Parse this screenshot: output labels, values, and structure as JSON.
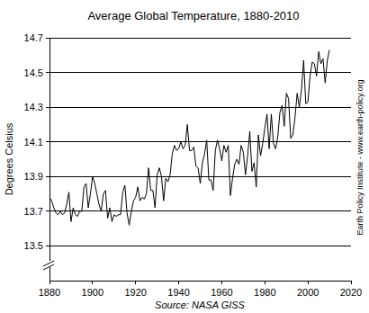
{
  "chart_data": {
    "type": "line",
    "title": "Average Global Temperature, 1880-2010",
    "ylabel": "Degrees Celsius",
    "source": "Source: NASA GISS",
    "credit": "Earth Policy Institute - www.earth-policy.org",
    "color": "#000000",
    "grid": true,
    "x": [
      1880,
      1881,
      1882,
      1883,
      1884,
      1885,
      1886,
      1887,
      1888,
      1889,
      1890,
      1891,
      1892,
      1893,
      1894,
      1895,
      1896,
      1897,
      1898,
      1899,
      1900,
      1901,
      1902,
      1903,
      1904,
      1905,
      1906,
      1907,
      1908,
      1909,
      1910,
      1911,
      1912,
      1913,
      1914,
      1915,
      1916,
      1917,
      1918,
      1919,
      1920,
      1921,
      1922,
      1923,
      1924,
      1925,
      1926,
      1927,
      1928,
      1929,
      1930,
      1931,
      1932,
      1933,
      1934,
      1935,
      1936,
      1937,
      1938,
      1939,
      1940,
      1941,
      1942,
      1943,
      1944,
      1945,
      1946,
      1947,
      1948,
      1949,
      1950,
      1951,
      1952,
      1953,
      1954,
      1955,
      1956,
      1957,
      1958,
      1959,
      1960,
      1961,
      1962,
      1963,
      1964,
      1965,
      1966,
      1967,
      1968,
      1969,
      1970,
      1971,
      1972,
      1973,
      1974,
      1975,
      1976,
      1977,
      1978,
      1979,
      1980,
      1981,
      1982,
      1983,
      1984,
      1985,
      1986,
      1987,
      1988,
      1989,
      1990,
      1991,
      1992,
      1993,
      1994,
      1995,
      1996,
      1997,
      1998,
      1999,
      2000,
      2001,
      2002,
      2003,
      2004,
      2005,
      2006,
      2007,
      2008,
      2009,
      2010
    ],
    "values": [
      13.78,
      13.76,
      13.72,
      13.69,
      13.68,
      13.7,
      13.68,
      13.69,
      13.74,
      13.81,
      13.64,
      13.72,
      13.68,
      13.67,
      13.7,
      13.7,
      13.84,
      13.86,
      13.72,
      13.8,
      13.9,
      13.86,
      13.8,
      13.74,
      13.7,
      13.8,
      13.82,
      13.66,
      13.72,
      13.64,
      13.68,
      13.67,
      13.68,
      13.68,
      13.81,
      13.85,
      13.69,
      13.62,
      13.7,
      13.76,
      13.78,
      13.84,
      13.76,
      13.78,
      13.77,
      13.8,
      13.95,
      13.82,
      13.82,
      13.72,
      13.91,
      13.95,
      13.9,
      13.76,
      13.89,
      13.87,
      13.91,
      14.03,
      14.08,
      14.05,
      14.06,
      14.1,
      14.06,
      14.08,
      14.2,
      14.05,
      14.05,
      14.07,
      13.96,
      13.95,
      13.86,
      13.98,
      14.03,
      14.11,
      13.88,
      13.88,
      13.82,
      14.05,
      14.11,
      14.06,
      13.99,
      14.08,
      14.04,
      14.08,
      13.79,
      13.89,
      13.97,
      14.0,
      13.97,
      14.08,
      14.04,
      13.91,
      14.02,
      14.16,
      13.93,
      13.98,
      13.84,
      14.14,
      14.02,
      14.09,
      14.18,
      14.26,
      14.06,
      14.26,
      14.09,
      14.06,
      14.13,
      14.27,
      14.31,
      14.19,
      14.38,
      14.35,
      14.12,
      14.14,
      14.24,
      14.38,
      14.3,
      14.4,
      14.57,
      14.32,
      14.33,
      14.48,
      14.56,
      14.55,
      14.48,
      14.62,
      14.55,
      14.58,
      14.44,
      14.57,
      14.63
    ],
    "xlim": [
      1880,
      2020
    ],
    "xticks": [
      1880,
      1900,
      1920,
      1940,
      1960,
      1980,
      2000,
      2020
    ],
    "ylim": [
      13.3,
      14.7
    ],
    "yticks": [
      13.5,
      13.7,
      13.9,
      14.1,
      14.3,
      14.5,
      14.7
    ]
  }
}
